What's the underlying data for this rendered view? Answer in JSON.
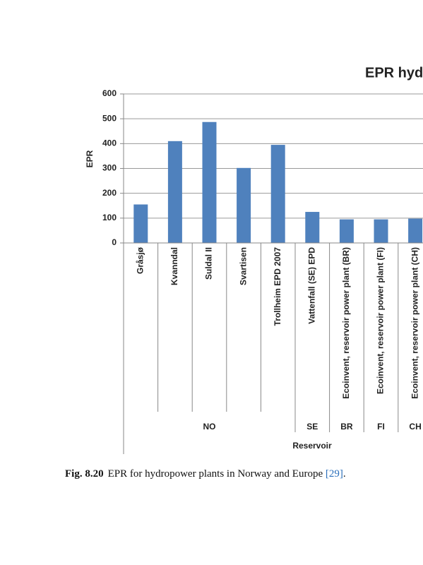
{
  "chart_data": {
    "type": "bar",
    "title": "EPR hyd",
    "y_label": "EPR",
    "x_label": "Reservoir",
    "categories": [
      "Gråsjø",
      "Kvanndal",
      "Suldal II",
      "Svartisen",
      "Trollheim EPD 2007",
      "Vattenfall (SE) EPD",
      "Ecoinvent, reservoir power plant (BR)",
      "Ecoinvent, reservoir power plant (FI)",
      "Ecoinvent, reservoir power plant (CH)"
    ],
    "values": [
      155,
      410,
      487,
      302,
      395,
      125,
      95,
      95,
      98
    ],
    "groups": [
      {
        "label": "NO",
        "size": 5
      },
      {
        "label": "SE",
        "size": 1
      },
      {
        "label": "BR",
        "size": 1
      },
      {
        "label": "FI",
        "size": 1
      },
      {
        "label": "CH",
        "size": 1
      }
    ],
    "color": "#4f81bd",
    "ylim": [
      0,
      600
    ],
    "yticks": [
      0,
      100,
      200,
      300,
      400,
      500,
      600
    ],
    "grid": true
  },
  "caption": {
    "label": "Fig. 8.20",
    "text": "EPR for hydropower plants in Norway and Europe",
    "ref": "[29]",
    "end": "."
  }
}
